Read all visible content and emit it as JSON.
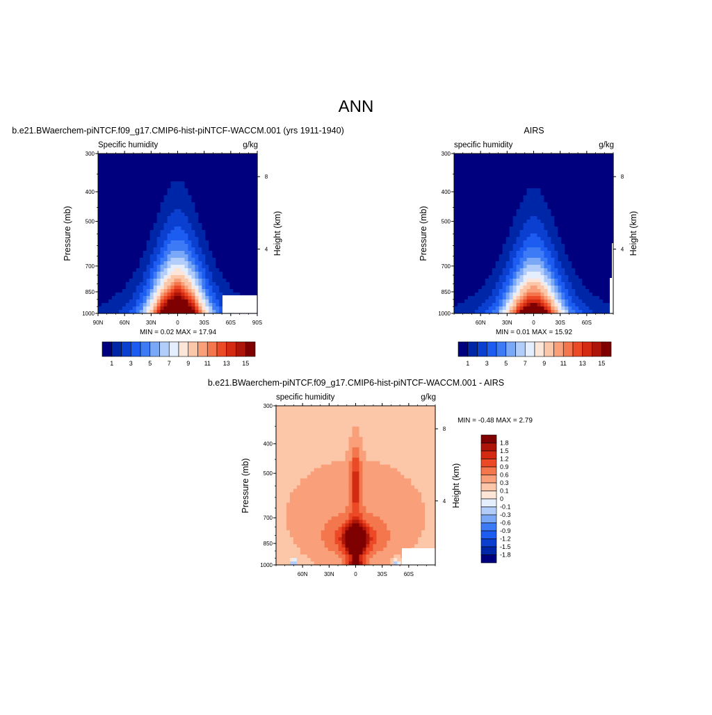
{
  "figure": {
    "title": "ANN"
  },
  "palette": [
    "#00007f",
    "#0026a8",
    "#0b3fd0",
    "#1d5cf0",
    "#3d7af5",
    "#7aa8f7",
    "#b3cdfa",
    "#e4eefc",
    "#fde6d8",
    "#fcc6a8",
    "#f9a07a",
    "#f4764c",
    "#ec4a26",
    "#d42a12",
    "#ad1508",
    "#7f0000"
  ],
  "chart_data": [
    {
      "type": "heatmap",
      "title": "b.e21.BWaerchem-piNTCF.f09_g17.CMIP6-hist-piNTCF-WACCM.001 (yrs 1911-1940)",
      "left_label": "Specific humidity",
      "right_label": "g/kg",
      "ylabel": "Pressure (mb)",
      "y2label": "Height (km)",
      "y_ticks": [
        300,
        400,
        500,
        700,
        850,
        1000
      ],
      "y2_ticks": [
        8,
        4
      ],
      "x_ticks": [
        "90N",
        "60N",
        "30N",
        "0",
        "30S",
        "60S",
        "90S"
      ],
      "xlim": [
        "90N",
        "90S"
      ],
      "ylim": [
        1000,
        300
      ],
      "y_scale": "log",
      "stats": "MIN =   0.02  MAX =  17.94",
      "peak": 17.94,
      "colorbar": {
        "labels": [
          "1",
          "3",
          "5",
          "7",
          "9",
          "11",
          "13",
          "15"
        ]
      }
    },
    {
      "type": "heatmap",
      "title": "AIRS",
      "left_label": "specific humidity",
      "right_label": "g/kg",
      "ylabel": "Pressure (mb)",
      "y2label": "Height (km)",
      "y_ticks": [
        300,
        400,
        500,
        700,
        850,
        1000
      ],
      "y2_ticks": [
        8,
        4
      ],
      "x_ticks": [
        "60N",
        "30N",
        "0",
        "30S",
        "60S"
      ],
      "y_scale": "log",
      "stats": "MIN =   0.01  MAX =  15.92",
      "peak": 15.92,
      "colorbar": {
        "labels": [
          "1",
          "3",
          "5",
          "7",
          "9",
          "11",
          "13",
          "15"
        ]
      }
    },
    {
      "type": "heatmap",
      "title": "b.e21.BWaerchem-piNTCF.f09_g17.CMIP6-hist-piNTCF-WACCM.001 - AIRS",
      "left_label": "specific humidity",
      "right_label": "g/kg",
      "ylabel": "Pressure (mb)",
      "y2label": "Height (km)",
      "y_ticks": [
        300,
        400,
        500,
        700,
        850,
        1000
      ],
      "y2_ticks": [
        8,
        4
      ],
      "x_ticks": [
        "60N",
        "30N",
        "0",
        "30S",
        "60S"
      ],
      "y_scale": "log",
      "stats": "MIN =  -0.48  MAX =   2.79",
      "colorbar": {
        "labels": [
          "1.8",
          "1.5",
          "1.2",
          "0.9",
          "0.6",
          "0.3",
          "0.1",
          "0",
          "-0.1",
          "-0.3",
          "-0.6",
          "-0.9",
          "-1.2",
          "-1.5",
          "-1.8"
        ]
      }
    }
  ]
}
